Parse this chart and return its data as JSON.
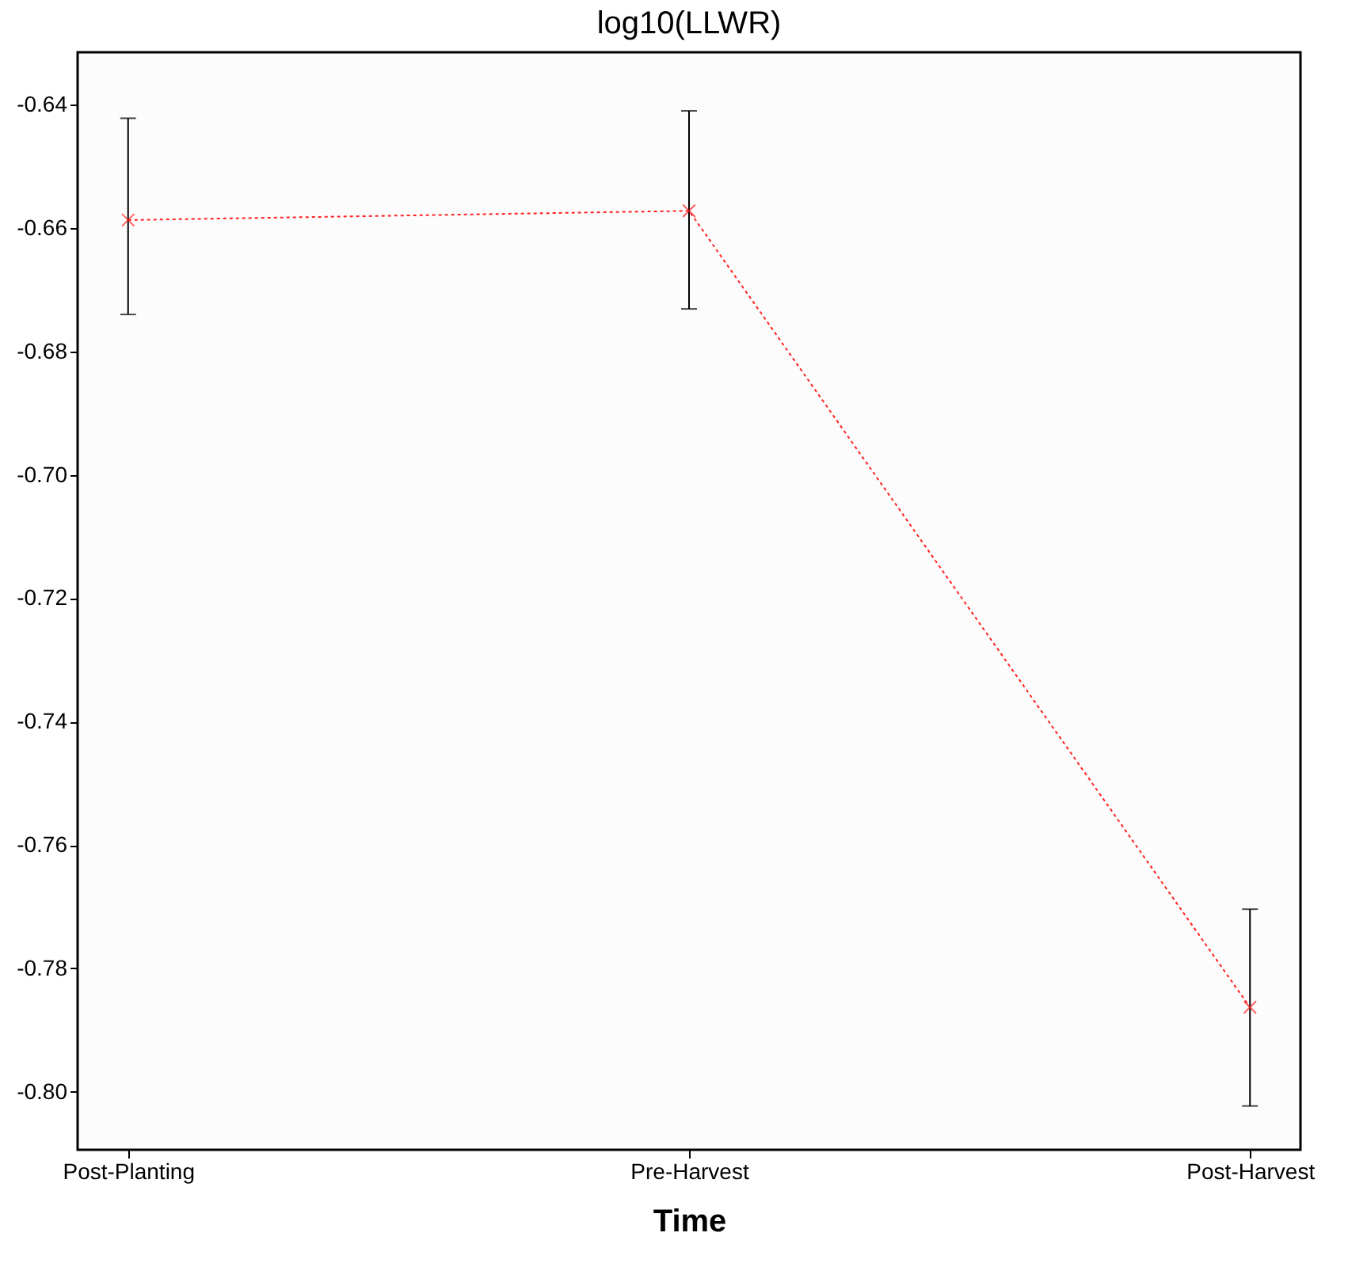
{
  "chart_data": {
    "type": "line",
    "title": "log10(LLWR)",
    "xlabel": "Time",
    "categories": [
      "Post-Planting",
      "Pre-Harvest",
      "Post-Harvest"
    ],
    "series": [
      {
        "color": "#ff2020",
        "values": [
          -0.6587,
          -0.6572,
          -0.7863
        ],
        "errors": [
          [
            -0.674,
            -0.6422
          ],
          [
            -0.6731,
            -0.641
          ],
          [
            -0.8023,
            -0.7704
          ]
        ]
      }
    ],
    "ylim": [
      -0.8094,
      -0.6315
    ],
    "yticks": [
      -0.64,
      -0.66,
      -0.68,
      {
        "value": -0.7,
        "label": "-0.70"
      },
      -0.72,
      -0.74,
      -0.76,
      -0.78,
      {
        "value": -0.8,
        "label": "-0.80"
      }
    ],
    "marker": "cross",
    "line_style": "dotted",
    "grid": false
  }
}
